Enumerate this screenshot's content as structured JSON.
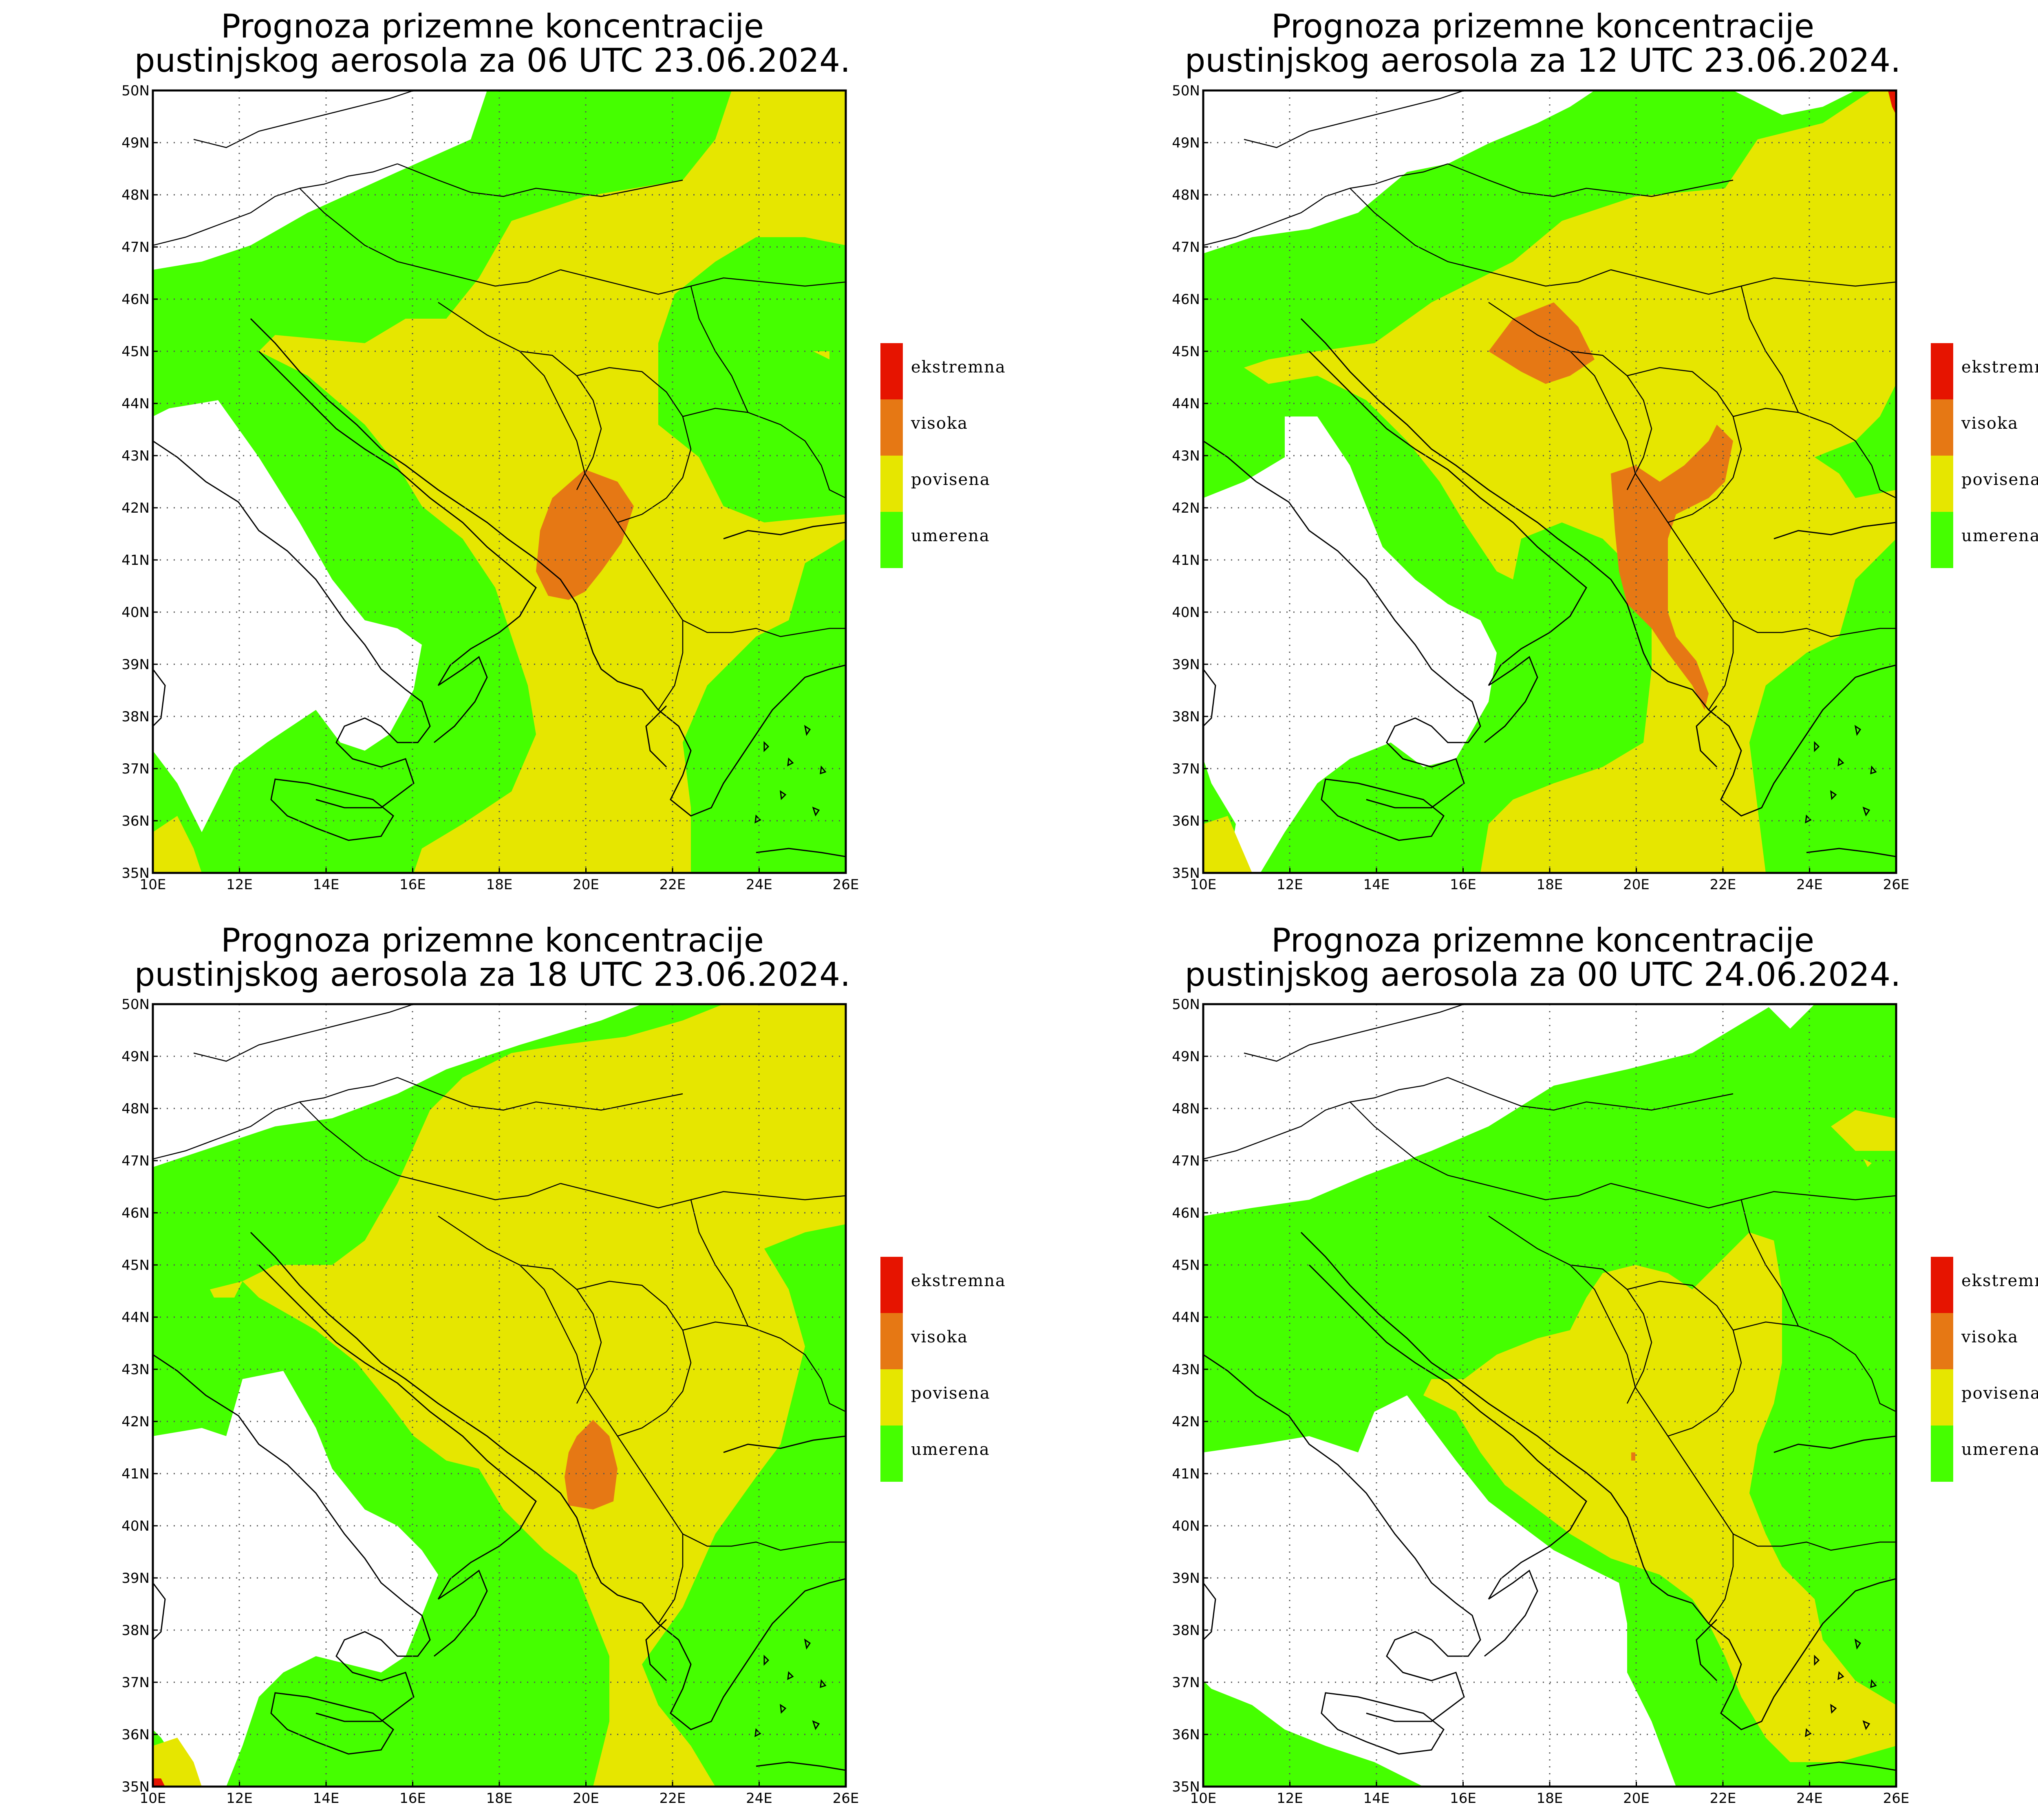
{
  "panels": [
    {
      "title_line1": "Prognoza prizemne koncentracije",
      "title_line2": "pustinjskog aerosola za 06 UTC 23.06.2024."
    },
    {
      "title_line1": "Prognoza prizemne koncentracije",
      "title_line2": "pustinjskog aerosola za 12 UTC 23.06.2024."
    },
    {
      "title_line1": "Prognoza prizemne koncentracije",
      "title_line2": "pustinjskog aerosola za 18 UTC 23.06.2024."
    },
    {
      "title_line1": "Prognoza prizemne koncentracije",
      "title_line2": "pustinjskog aerosola za 00 UTC 24.06.2024."
    }
  ],
  "lat_labels": [
    "50N",
    "49N",
    "48N",
    "47N",
    "46N",
    "45N",
    "44N",
    "43N",
    "42N",
    "41N",
    "40N",
    "39N",
    "38N",
    "37N",
    "36N",
    "35N"
  ],
  "lon_labels": [
    "10E",
    "12E",
    "14E",
    "16E",
    "18E",
    "20E",
    "22E",
    "24E",
    "26E"
  ],
  "legend": [
    {
      "label": "ekstremna",
      "color": "#e61400"
    },
    {
      "label": "visoka",
      "color": "#e67814"
    },
    {
      "label": "povisena",
      "color": "#e6e600"
    },
    {
      "label": "umerena",
      "color": "#45ff00"
    }
  ],
  "colors": {
    "extreme": "#e61400",
    "high": "#e67814",
    "elevated": "#e6e600",
    "moderate": "#45ff00",
    "land_none": "#ffffff"
  }
}
